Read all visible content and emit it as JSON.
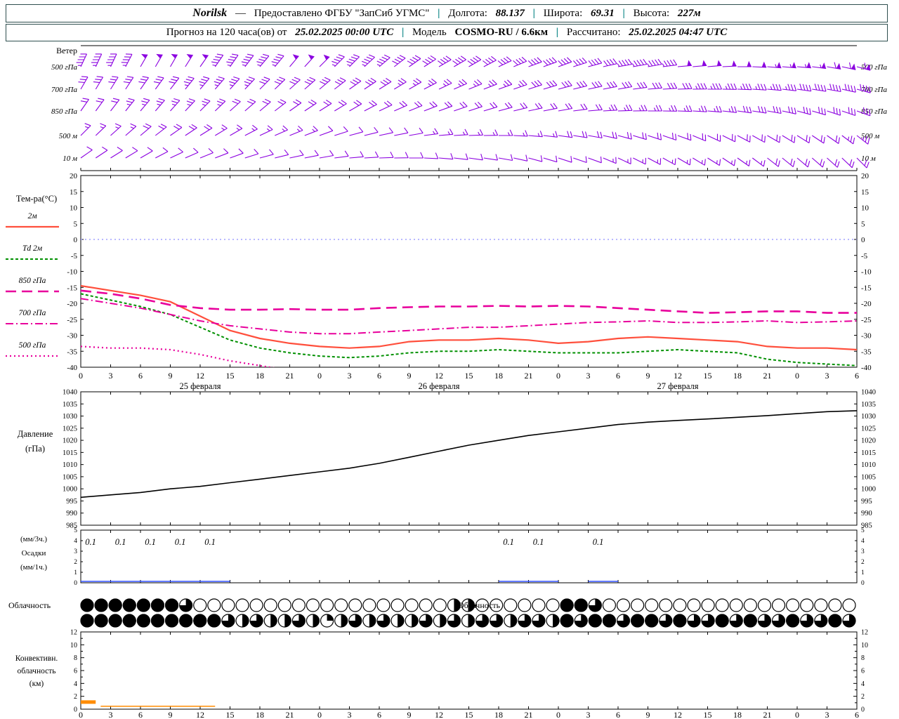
{
  "header": {
    "station": "Norilsk",
    "dash": "—",
    "provider": "Предоставлено ФГБУ \"ЗапСиб УГМС\"",
    "pipe": "|",
    "lon_label": "Долгота:",
    "lon_value": "88.137",
    "lat_label": "Широта:",
    "lat_value": "69.31",
    "alt_label": "Высота:",
    "alt_value": "227м",
    "forecast_label": "Прогноз на 120 часа(ов) от",
    "forecast_time": "25.02.2025 00:00 UTC",
    "model_label": "Модель",
    "model_value": "COSMO-RU / 6.6км",
    "calc_label": "Рассчитано:",
    "calc_time": "25.02.2025 04:47 UTC"
  },
  "colors": {
    "wind_barb": "#8b00e0",
    "t2m": "#ff4f3c",
    "td2m": "#009000",
    "t850": "#e8009c",
    "t700": "#e8009c",
    "t500": "#e8009c",
    "pressure": "#000000",
    "precip_1h": "#3050ff",
    "convective": "#ff8c00",
    "separator": "#008080",
    "zero_line": "#7070ff"
  },
  "labels": {
    "wind_title": "Ветер",
    "temp_title": "Тем-ра(°C)",
    "pressure_title": [
      "Давление",
      "(гПа)"
    ],
    "precip_title": [
      "(мм/3ч.)",
      "Осадки",
      "(мм/1ч.)"
    ],
    "cloud_title": "Облачность",
    "cloud_overlay": "Облачность",
    "conv_title": [
      "Конвективн.",
      "облачность",
      "(км)"
    ]
  },
  "chart_data": [
    {
      "name": "time_axis",
      "type": "axis",
      "hours": [
        0,
        3,
        6,
        9,
        12,
        15,
        18,
        21,
        24,
        27,
        30,
        33,
        36,
        39,
        42,
        45,
        48,
        51,
        54,
        57,
        60,
        63,
        66,
        69,
        72,
        75,
        78
      ],
      "hour_labels": [
        "0",
        "3",
        "6",
        "9",
        "12",
        "15",
        "18",
        "21",
        "0",
        "3",
        "6",
        "9",
        "12",
        "15",
        "18",
        "21",
        "0",
        "3",
        "6",
        "9",
        "12",
        "15",
        "18",
        "21",
        "0",
        "3",
        "6"
      ],
      "date_labels": [
        {
          "label": "25 февраля",
          "hour": 12
        },
        {
          "label": "26 февраля",
          "hour": 36
        },
        {
          "label": "27 февраля",
          "hour": 60
        }
      ]
    },
    {
      "name": "wind",
      "type": "wind-barbs",
      "levels": [
        {
          "label": "500 гПа",
          "barbs": [
            [
              25,
              45
            ],
            [
              25,
              45
            ],
            [
              30,
              50
            ],
            [
              30,
              50
            ],
            [
              35,
              50
            ],
            [
              35,
              45
            ],
            [
              40,
              45
            ],
            [
              40,
              50
            ],
            [
              45,
              50
            ],
            [
              45,
              45
            ],
            [
              50,
              45
            ],
            [
              55,
              40
            ],
            [
              60,
              40
            ],
            [
              60,
              40
            ],
            [
              65,
              38
            ],
            [
              70,
              38
            ],
            [
              70,
              40
            ],
            [
              75,
              40
            ],
            [
              80,
              45
            ],
            [
              80,
              45
            ],
            [
              85,
              48
            ],
            [
              85,
              50
            ],
            [
              90,
              50
            ],
            [
              95,
              55
            ],
            [
              95,
              55
            ],
            [
              100,
              60
            ],
            [
              105,
              60
            ]
          ]
        },
        {
          "label": "700 гПа",
          "barbs": [
            [
              30,
              30
            ],
            [
              32,
              30
            ],
            [
              35,
              32
            ],
            [
              38,
              32
            ],
            [
              40,
              35
            ],
            [
              42,
              35
            ],
            [
              45,
              32
            ],
            [
              48,
              30
            ],
            [
              50,
              30
            ],
            [
              55,
              28
            ],
            [
              58,
              28
            ],
            [
              60,
              25
            ],
            [
              65,
              25
            ],
            [
              68,
              25
            ],
            [
              70,
              25
            ],
            [
              72,
              28
            ],
            [
              75,
              28
            ],
            [
              78,
              30
            ],
            [
              80,
              30
            ],
            [
              85,
              32
            ],
            [
              88,
              32
            ],
            [
              90,
              35
            ],
            [
              92,
              35
            ],
            [
              95,
              35
            ],
            [
              98,
              38
            ],
            [
              100,
              38
            ],
            [
              105,
              40
            ]
          ]
        },
        {
          "label": "850 гПа",
          "barbs": [
            [
              35,
              22
            ],
            [
              38,
              22
            ],
            [
              40,
              25
            ],
            [
              42,
              25
            ],
            [
              45,
              25
            ],
            [
              48,
              22
            ],
            [
              50,
              22
            ],
            [
              55,
              20
            ],
            [
              58,
              20
            ],
            [
              60,
              20
            ],
            [
              65,
              18
            ],
            [
              68,
              18
            ],
            [
              70,
              18
            ],
            [
              72,
              20
            ],
            [
              75,
              20
            ],
            [
              78,
              22
            ],
            [
              80,
              22
            ],
            [
              85,
              22
            ],
            [
              88,
              25
            ],
            [
              90,
              25
            ],
            [
              92,
              25
            ],
            [
              95,
              25
            ],
            [
              98,
              28
            ],
            [
              100,
              28
            ],
            [
              105,
              28
            ],
            [
              108,
              30
            ],
            [
              110,
              30
            ]
          ]
        },
        {
          "label": "500 м",
          "barbs": [
            [
              45,
              15
            ],
            [
              48,
              15
            ],
            [
              50,
              18
            ],
            [
              55,
              18
            ],
            [
              58,
              18
            ],
            [
              60,
              15
            ],
            [
              65,
              15
            ],
            [
              68,
              15
            ],
            [
              70,
              12
            ],
            [
              75,
              12
            ],
            [
              78,
              12
            ],
            [
              80,
              12
            ],
            [
              85,
              15
            ],
            [
              88,
              15
            ],
            [
              90,
              15
            ],
            [
              95,
              15
            ],
            [
              98,
              18
            ],
            [
              100,
              18
            ],
            [
              105,
              18
            ],
            [
              108,
              18
            ],
            [
              110,
              20
            ],
            [
              115,
              20
            ],
            [
              118,
              20
            ],
            [
              120,
              22
            ],
            [
              122,
              22
            ],
            [
              125,
              22
            ],
            [
              128,
              25
            ]
          ]
        },
        {
          "label": "10 м",
          "barbs": [
            [
              55,
              10
            ],
            [
              58,
              10
            ],
            [
              60,
              12
            ],
            [
              65,
              12
            ],
            [
              68,
              12
            ],
            [
              70,
              10
            ],
            [
              75,
              10
            ],
            [
              78,
              10
            ],
            [
              80,
              8
            ],
            [
              85,
              8
            ],
            [
              88,
              8
            ],
            [
              90,
              10
            ],
            [
              95,
              10
            ],
            [
              98,
              10
            ],
            [
              100,
              12
            ],
            [
              105,
              12
            ],
            [
              108,
              12
            ],
            [
              110,
              12
            ],
            [
              115,
              15
            ],
            [
              118,
              15
            ],
            [
              120,
              15
            ],
            [
              122,
              15
            ],
            [
              125,
              15
            ],
            [
              128,
              18
            ],
            [
              130,
              18
            ],
            [
              132,
              18
            ],
            [
              135,
              18
            ]
          ]
        }
      ]
    },
    {
      "name": "temperature",
      "type": "line",
      "ylim": [
        -40,
        20
      ],
      "ytick_step": 5,
      "series": [
        {
          "name": "2м",
          "color_key": "t2m",
          "dash": "solid",
          "values": [
            -14.5,
            -16,
            -17.5,
            -19.5,
            -24,
            -28.5,
            -31,
            -32.5,
            -33.5,
            -34,
            -33.5,
            -32,
            -31.5,
            -31.5,
            -31,
            -31.5,
            -32.5,
            -32,
            -31,
            -30.5,
            -31,
            -31.5,
            -32,
            -33.5,
            -34,
            -34,
            -34.5
          ]
        },
        {
          "name": "Td 2м",
          "color_key": "td2m",
          "dash": "short-dash",
          "values": [
            -17,
            -19,
            -21,
            -23.5,
            -27.5,
            -31.5,
            -34,
            -35.5,
            -36.5,
            -37,
            -36.5,
            -35.5,
            -35,
            -35,
            -34.5,
            -35,
            -35.5,
            -35.5,
            -35.5,
            -35,
            -34.5,
            -35,
            -35.5,
            -37.5,
            -38.5,
            -39,
            -39.5
          ]
        },
        {
          "name": "850 гПа",
          "color_key": "t850",
          "dash": "long-dash",
          "values": [
            -16,
            -17,
            -18.5,
            -20.5,
            -21.5,
            -22,
            -22,
            -21.8,
            -22,
            -22,
            -21.5,
            -21.2,
            -21,
            -21,
            -20.8,
            -21,
            -20.8,
            -21,
            -21.5,
            -22,
            -22.5,
            -23,
            -22.8,
            -22.5,
            -22.5,
            -23,
            -23
          ]
        },
        {
          "name": "700 гПа",
          "color_key": "t700",
          "dash": "dash-dot",
          "values": [
            -18.5,
            -20,
            -21.5,
            -23.5,
            -25.5,
            -27,
            -28,
            -29,
            -29.5,
            -29.5,
            -29,
            -28.5,
            -28,
            -27.5,
            -27.5,
            -27,
            -26.5,
            -26,
            -25.8,
            -25.5,
            -26,
            -26,
            -25.8,
            -25.5,
            -26,
            -25.8,
            -25.5
          ]
        },
        {
          "name": "500 гПа",
          "color_key": "t500",
          "dash": "dot",
          "values": [
            -33.5,
            -34,
            -34,
            -34.5,
            -36,
            -38,
            -39.5,
            -41,
            -42.5,
            null,
            null,
            null,
            null,
            null,
            null,
            null,
            null,
            null,
            null,
            null,
            null,
            null,
            null,
            null,
            null,
            null,
            null
          ]
        }
      ]
    },
    {
      "name": "pressure",
      "type": "line",
      "ylim": [
        985,
        1040
      ],
      "ytick_step": 5,
      "series": [
        {
          "name": "Давление (гПа)",
          "color_key": "pressure",
          "dash": "solid",
          "values": [
            996.5,
            997.5,
            998.5,
            1000,
            1001,
            1002.5,
            1004,
            1005.5,
            1007,
            1008.5,
            1010.5,
            1013,
            1015.5,
            1018,
            1020,
            1022,
            1023.5,
            1025,
            1026.5,
            1027.5,
            1028.2,
            1028.8,
            1029.5,
            1030.2,
            1031,
            1031.8,
            1032.2
          ]
        }
      ]
    },
    {
      "name": "precipitation",
      "type": "bar",
      "ylim": [
        0,
        5
      ],
      "interval_hours": 3,
      "values_3h": [
        0.1,
        0.1,
        0.1,
        0.1,
        0.1,
        0,
        0,
        0,
        0,
        0,
        0,
        0,
        0,
        0,
        0.1,
        0.1,
        0,
        0.1,
        0,
        0,
        0,
        0,
        0,
        0,
        0,
        0
      ],
      "segments_1h": [
        [
          0,
          15
        ],
        [
          42,
          48
        ],
        [
          51,
          54
        ]
      ]
    },
    {
      "name": "cloudiness",
      "type": "okta-rows",
      "rows": [
        {
          "values": [
            1,
            1,
            1,
            1,
            1,
            1,
            1,
            0.75,
            0,
            0,
            0,
            0,
            0,
            0,
            0,
            0,
            0,
            0,
            0,
            0,
            0,
            0,
            0,
            0,
            0,
            0,
            0.5,
            0.5,
            0,
            0,
            0,
            0,
            0,
            0,
            1,
            1,
            0.75,
            0,
            0,
            0,
            0,
            0,
            0,
            0,
            0,
            0,
            0,
            0,
            0,
            0,
            0,
            0,
            0,
            0,
            0
          ]
        },
        {
          "values": [
            1,
            1,
            1,
            1,
            1,
            1,
            1,
            1,
            1,
            1,
            0.75,
            0.5,
            0.75,
            0.5,
            0.5,
            0.75,
            0.5,
            0.25,
            0.5,
            0.75,
            0.5,
            0.75,
            0.5,
            0.5,
            0.75,
            0.5,
            0.75,
            0.5,
            0.75,
            0.75,
            0.5,
            0.75,
            0.75,
            0.5,
            1,
            0.75,
            1,
            1,
            0.75,
            1,
            1,
            0.75,
            1,
            0.75,
            0.75,
            1,
            0.75,
            1,
            0.75,
            0.75,
            1,
            0.75,
            0.75,
            1,
            0.75
          ]
        }
      ]
    },
    {
      "name": "convective_cloud",
      "type": "segments",
      "ylim": [
        0,
        12
      ],
      "segments": [
        {
          "h0": 0,
          "h1": 1.5,
          "km": 1.1,
          "thick": true
        },
        {
          "h0": 2,
          "h1": 13.5,
          "km": 0.45,
          "thick": false
        }
      ]
    }
  ]
}
